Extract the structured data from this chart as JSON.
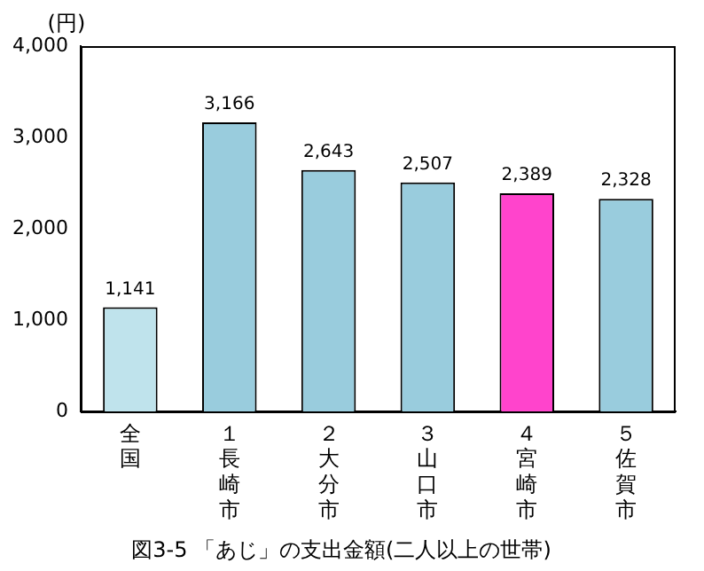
{
  "chart_data": {
    "type": "bar",
    "title": "図3-5 「あじ」の支出金額(二人以上の世帯)",
    "ylabel": "(円)",
    "categories": [
      "全国",
      "１長崎市",
      "２大分市",
      "３山口市",
      "４宮崎市",
      "５佐賀市"
    ],
    "values": [
      1141,
      3166,
      2643,
      2507,
      2389,
      2328
    ],
    "colors": [
      "#bfe3ec",
      "#99ccdd",
      "#99ccdd",
      "#99ccdd",
      "#ff44cc",
      "#99ccdd"
    ],
    "ylim": [
      0,
      4000
    ],
    "yticks": [
      {
        "value": 0,
        "label": "0"
      },
      {
        "value": 1000,
        "label": "1,000"
      },
      {
        "value": 2000,
        "label": "2,000"
      },
      {
        "value": 3000,
        "label": "3,000"
      },
      {
        "value": 4000,
        "label": "4,000"
      }
    ],
    "value_labels": [
      "1,141",
      "3,166",
      "2,643",
      "2,507",
      "2,389",
      "2,328"
    ],
    "grid": false
  }
}
